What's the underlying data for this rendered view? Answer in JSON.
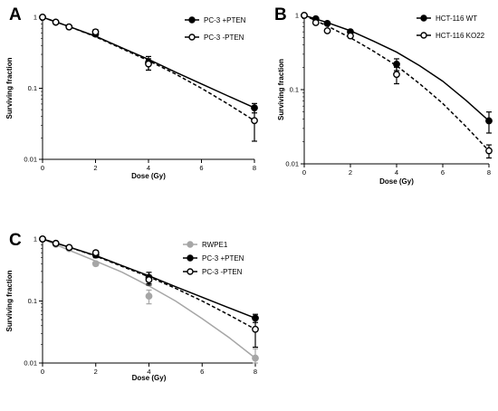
{
  "chart_data": [
    {
      "panel": "A",
      "type": "scatter",
      "xlabel": "Dose (Gy)",
      "ylabel": "Surviving fraction",
      "xlim": [
        0,
        8
      ],
      "ylim": [
        0.01,
        1
      ],
      "yscale": "log",
      "xticks": [
        "0",
        "2",
        "4",
        "6",
        "8"
      ],
      "yticks": [
        "1",
        "0.1",
        "0.01"
      ],
      "legend_position": "top-right",
      "series": [
        {
          "name": "PC-3 +PTEN",
          "marker": "filled",
          "color": "#000000",
          "line": "solid",
          "x": [
            0,
            0.5,
            1,
            2,
            4,
            8
          ],
          "y": [
            1.0,
            0.85,
            0.73,
            0.58,
            0.23,
            0.053
          ],
          "err": [
            0,
            0,
            0,
            0.04,
            0.05,
            0.008
          ],
          "fit": [
            [
              0,
              1.0
            ],
            [
              1,
              0.74
            ],
            [
              2,
              0.54
            ],
            [
              3,
              0.37
            ],
            [
              4,
              0.255
            ],
            [
              5,
              0.17
            ],
            [
              6,
              0.115
            ],
            [
              7,
              0.078
            ],
            [
              8,
              0.053
            ]
          ]
        },
        {
          "name": "PC-3 -PTEN",
          "marker": "open",
          "color": "#000000",
          "line": "dashed",
          "x": [
            0,
            0.5,
            1,
            2,
            4,
            8
          ],
          "y": [
            1.0,
            0.85,
            0.73,
            0.62,
            0.22,
            0.035
          ],
          "err": [
            0,
            0,
            0,
            0.05,
            0.04,
            0.017
          ],
          "fit": [
            [
              0,
              1.0
            ],
            [
              1,
              0.74
            ],
            [
              2,
              0.53
            ],
            [
              3,
              0.36
            ],
            [
              4,
              0.245
            ],
            [
              5,
              0.16
            ],
            [
              6,
              0.1
            ],
            [
              7,
              0.06
            ],
            [
              8,
              0.035
            ]
          ]
        }
      ]
    },
    {
      "panel": "B",
      "type": "scatter",
      "xlabel": "Dose (Gy)",
      "ylabel": "Surviving fraction",
      "xlim": [
        0,
        8
      ],
      "ylim": [
        0.01,
        1
      ],
      "yscale": "log",
      "xticks": [
        "0",
        "2",
        "4",
        "6",
        "8"
      ],
      "yticks": [
        "1",
        "0.1",
        "0.01"
      ],
      "legend_position": "top-right",
      "series": [
        {
          "name": "HCT-116 WT",
          "marker": "filled",
          "color": "#000000",
          "line": "solid",
          "x": [
            0,
            0.5,
            1,
            2,
            4,
            8
          ],
          "y": [
            1.0,
            0.9,
            0.78,
            0.6,
            0.22,
            0.038
          ],
          "err": [
            0,
            0,
            0,
            0.03,
            0.04,
            0.012
          ],
          "fit": [
            [
              0,
              1.0
            ],
            [
              1,
              0.8
            ],
            [
              2,
              0.62
            ],
            [
              3,
              0.45
            ],
            [
              4,
              0.32
            ],
            [
              5,
              0.21
            ],
            [
              6,
              0.13
            ],
            [
              7,
              0.072
            ],
            [
              8,
              0.038
            ]
          ]
        },
        {
          "name": "HCT-116 KO22",
          "marker": "open",
          "color": "#000000",
          "line": "dashed",
          "x": [
            0,
            0.5,
            1,
            2,
            4,
            8
          ],
          "y": [
            1.0,
            0.8,
            0.62,
            0.53,
            0.16,
            0.015
          ],
          "err": [
            0,
            0,
            0,
            0.03,
            0.04,
            0.003
          ],
          "fit": [
            [
              0,
              1.0
            ],
            [
              1,
              0.72
            ],
            [
              2,
              0.5
            ],
            [
              3,
              0.33
            ],
            [
              4,
              0.21
            ],
            [
              5,
              0.12
            ],
            [
              6,
              0.065
            ],
            [
              7,
              0.032
            ],
            [
              8,
              0.015
            ]
          ]
        }
      ]
    },
    {
      "panel": "C",
      "type": "scatter",
      "xlabel": "Dose (Gy)",
      "ylabel": "Surviving fraction",
      "xlim": [
        0,
        8
      ],
      "ylim": [
        0.01,
        1
      ],
      "yscale": "log",
      "xticks": [
        "0",
        "2",
        "4",
        "6",
        "8"
      ],
      "yticks": [
        "1",
        "0.1",
        "0.01"
      ],
      "legend_position": "top-right",
      "series": [
        {
          "name": "RWPE1",
          "marker": "filled",
          "color": "#a6a6a6",
          "line": "solid",
          "x": [
            0,
            0.5,
            1,
            2,
            4,
            8
          ],
          "y": [
            1.0,
            0.82,
            0.7,
            0.4,
            0.12,
            0.012
          ],
          "err": [
            0,
            0,
            0,
            0.03,
            0.03,
            0.005
          ],
          "fit": [
            [
              0,
              1.0
            ],
            [
              1,
              0.66
            ],
            [
              2,
              0.44
            ],
            [
              3,
              0.29
            ],
            [
              4,
              0.175
            ],
            [
              5,
              0.1
            ],
            [
              6,
              0.052
            ],
            [
              7,
              0.026
            ],
            [
              8,
              0.012
            ]
          ]
        },
        {
          "name": "PC-3 +PTEN",
          "marker": "filled",
          "color": "#000000",
          "line": "solid",
          "x": [
            0,
            0.5,
            1,
            2,
            4,
            8
          ],
          "y": [
            1.0,
            0.85,
            0.73,
            0.55,
            0.24,
            0.053
          ],
          "err": [
            0,
            0,
            0,
            0.05,
            0.05,
            0.008
          ],
          "fit": [
            [
              0,
              1.0
            ],
            [
              1,
              0.74
            ],
            [
              2,
              0.54
            ],
            [
              3,
              0.37
            ],
            [
              4,
              0.255
            ],
            [
              5,
              0.17
            ],
            [
              6,
              0.115
            ],
            [
              7,
              0.078
            ],
            [
              8,
              0.053
            ]
          ]
        },
        {
          "name": "PC-3 -PTEN",
          "marker": "open",
          "color": "#000000",
          "line": "dashed",
          "x": [
            0,
            0.5,
            1,
            2,
            4,
            8
          ],
          "y": [
            1.0,
            0.85,
            0.73,
            0.6,
            0.22,
            0.035
          ],
          "err": [
            0,
            0,
            0,
            0.05,
            0.04,
            0.017
          ],
          "fit": [
            [
              0,
              1.0
            ],
            [
              1,
              0.74
            ],
            [
              2,
              0.53
            ],
            [
              3,
              0.36
            ],
            [
              4,
              0.245
            ],
            [
              5,
              0.16
            ],
            [
              6,
              0.1
            ],
            [
              7,
              0.06
            ],
            [
              8,
              0.035
            ]
          ]
        }
      ]
    }
  ]
}
